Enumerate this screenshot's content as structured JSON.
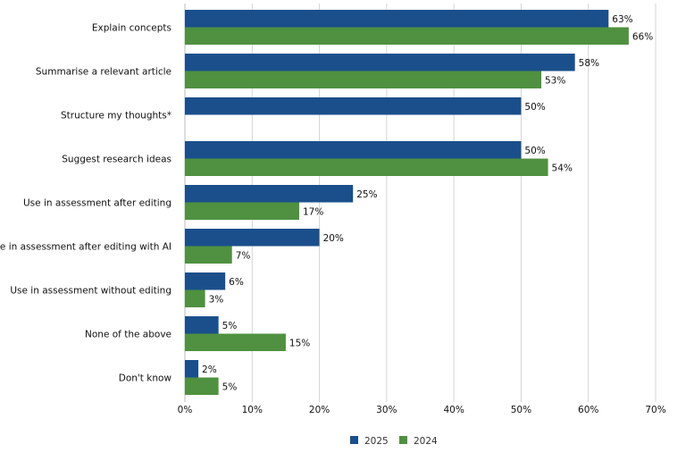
{
  "chart_data": {
    "type": "bar",
    "orientation": "horizontal",
    "categories": [
      "Explain concepts",
      "Summarise a relevant article",
      "Structure my thoughts*",
      "Suggest research ideas",
      "Use in assessment after editing",
      "Use in assessment after editing with AI",
      "Use in assessment without editing",
      "None of the above",
      "Don't know"
    ],
    "series": [
      {
        "name": "2025",
        "color": "#1a4f8b",
        "values": [
          63,
          58,
          50,
          50,
          25,
          20,
          6,
          5,
          2
        ]
      },
      {
        "name": "2024",
        "color": "#4f9140",
        "values": [
          66,
          53,
          null,
          54,
          17,
          7,
          3,
          15,
          5
        ]
      }
    ],
    "xlim": [
      0,
      70
    ],
    "xticks": [
      "0%",
      "10%",
      "20%",
      "30%",
      "40%",
      "50%",
      "60%",
      "70%"
    ],
    "value_suffix": "%",
    "grid": "vertical",
    "legend_position": "bottom"
  }
}
